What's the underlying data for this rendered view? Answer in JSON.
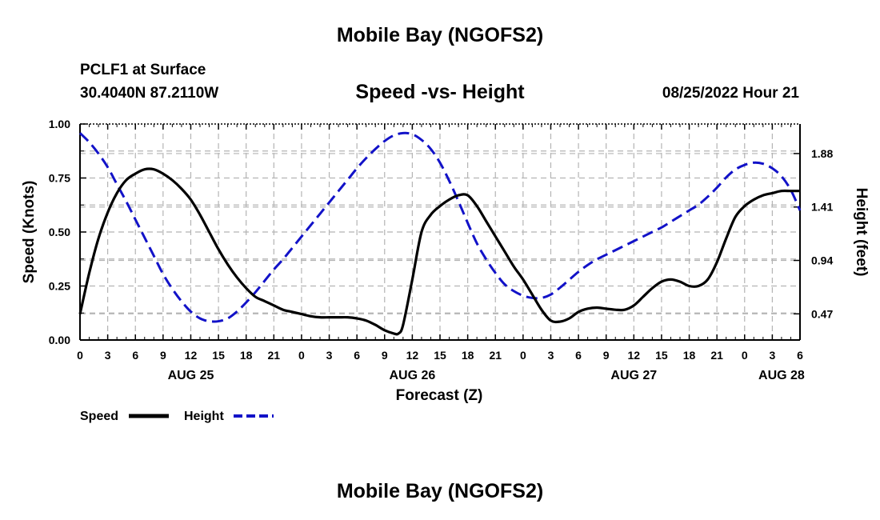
{
  "header": {
    "title": "Mobile Bay (NGOFS2)",
    "station": "PCLF1 at Surface",
    "coords": "30.4040N  87.2110W",
    "subtitle": "Speed -vs- Height",
    "datetime": "08/25/2022 Hour 21"
  },
  "footer": {
    "title": "Mobile Bay (NGOFS2)"
  },
  "chart_data": {
    "type": "line",
    "title": "Speed -vs- Height",
    "xlabel": "Forecast (Z)",
    "ylabel": "Speed (Knots)",
    "y2label": "Height (feet)",
    "xlim": [
      0,
      78
    ],
    "ylim": [
      0,
      1
    ],
    "y2lim": [
      0.24,
      2.14
    ],
    "x_ticks": [
      0,
      3,
      6,
      9,
      12,
      15,
      18,
      21,
      24,
      27,
      30,
      33,
      36,
      39,
      42,
      45,
      48,
      51,
      54,
      57,
      60,
      63,
      66,
      69,
      72,
      75,
      78
    ],
    "x_tick_labels": [
      "0",
      "3",
      "6",
      "9",
      "12",
      "15",
      "18",
      "21",
      "0",
      "3",
      "6",
      "9",
      "12",
      "15",
      "18",
      "21",
      "0",
      "3",
      "6",
      "9",
      "12",
      "15",
      "18",
      "21",
      "0",
      "3",
      "6"
    ],
    "date_labels": [
      {
        "x": 12,
        "label": "AUG 25"
      },
      {
        "x": 36,
        "label": "AUG 26"
      },
      {
        "x": 60,
        "label": "AUG 27"
      },
      {
        "x": 76,
        "label": "AUG 28"
      }
    ],
    "y_ticks": [
      0,
      0.25,
      0.5,
      0.75,
      1.0
    ],
    "y_tick_labels": [
      "0.00",
      "0.25",
      "0.50",
      "0.75",
      "1.00"
    ],
    "y2_ticks": [
      0.47,
      0.94,
      1.41,
      1.88
    ],
    "y2_tick_labels": [
      "0.47",
      "0.94",
      "1.41",
      "1.88"
    ],
    "grid": true,
    "legend": "bottom-left",
    "series": [
      {
        "name": "Speed",
        "axis": "left",
        "color": "#000000",
        "style": "solid",
        "x": [
          0,
          1,
          2,
          3,
          4,
          5,
          6,
          7,
          8,
          9,
          10,
          11,
          12,
          13,
          14,
          15,
          16,
          17,
          18,
          19,
          20,
          21,
          22,
          23,
          24,
          25,
          26,
          27,
          28,
          29,
          30,
          31,
          32,
          33,
          34,
          34.5,
          35,
          36,
          37,
          38,
          39,
          40,
          41,
          42,
          43,
          44,
          45,
          46,
          47,
          48,
          49,
          50,
          51,
          52,
          53,
          54,
          55,
          56,
          57,
          58,
          59,
          60,
          61,
          62,
          63,
          64,
          65,
          66,
          67,
          68,
          69,
          70,
          71,
          72,
          73,
          74,
          75,
          76,
          77,
          78
        ],
        "values": [
          0.12,
          0.31,
          0.47,
          0.59,
          0.68,
          0.74,
          0.77,
          0.79,
          0.79,
          0.77,
          0.74,
          0.7,
          0.65,
          0.58,
          0.5,
          0.42,
          0.35,
          0.29,
          0.24,
          0.2,
          0.18,
          0.16,
          0.14,
          0.13,
          0.12,
          0.11,
          0.105,
          0.105,
          0.105,
          0.105,
          0.1,
          0.09,
          0.07,
          0.045,
          0.03,
          0.03,
          0.07,
          0.28,
          0.5,
          0.58,
          0.62,
          0.65,
          0.67,
          0.67,
          0.62,
          0.55,
          0.48,
          0.41,
          0.34,
          0.28,
          0.21,
          0.14,
          0.09,
          0.085,
          0.1,
          0.13,
          0.145,
          0.15,
          0.145,
          0.14,
          0.14,
          0.16,
          0.2,
          0.24,
          0.27,
          0.28,
          0.27,
          0.25,
          0.25,
          0.28,
          0.36,
          0.47,
          0.57,
          0.62,
          0.65,
          0.67,
          0.68,
          0.69,
          0.69,
          0.69
        ]
      },
      {
        "name": "Height",
        "axis": "right",
        "color": "#1212c8",
        "style": "dashed",
        "x": [
          0,
          1,
          2,
          3,
          4,
          5,
          6,
          7,
          8,
          9,
          10,
          11,
          12,
          13,
          14,
          15,
          16,
          17,
          18,
          19,
          20,
          21,
          22,
          23,
          24,
          25,
          26,
          27,
          28,
          29,
          30,
          31,
          32,
          33,
          34,
          35,
          36,
          37,
          38,
          39,
          40,
          41,
          42,
          43,
          44,
          45,
          46,
          47,
          48,
          49,
          50,
          51,
          52,
          53,
          54,
          55,
          56,
          57,
          58,
          59,
          60,
          61,
          62,
          63,
          64,
          65,
          66,
          67,
          68,
          69,
          70,
          71,
          72,
          73,
          74,
          75,
          76,
          77,
          78
        ],
        "values": [
          2.06,
          1.98,
          1.88,
          1.76,
          1.61,
          1.46,
          1.3,
          1.14,
          0.98,
          0.82,
          0.69,
          0.58,
          0.49,
          0.43,
          0.405,
          0.405,
          0.43,
          0.49,
          0.57,
          0.66,
          0.76,
          0.86,
          0.95,
          1.05,
          1.15,
          1.25,
          1.35,
          1.45,
          1.55,
          1.65,
          1.75,
          1.84,
          1.92,
          1.99,
          2.04,
          2.06,
          2.05,
          2.0,
          1.92,
          1.8,
          1.64,
          1.46,
          1.27,
          1.09,
          0.95,
          0.83,
          0.73,
          0.67,
          0.63,
          0.61,
          0.61,
          0.64,
          0.7,
          0.77,
          0.84,
          0.9,
          0.95,
          0.99,
          1.03,
          1.07,
          1.11,
          1.15,
          1.19,
          1.23,
          1.28,
          1.33,
          1.38,
          1.43,
          1.5,
          1.58,
          1.67,
          1.74,
          1.78,
          1.8,
          1.79,
          1.75,
          1.68,
          1.56,
          1.38
        ]
      }
    ]
  }
}
